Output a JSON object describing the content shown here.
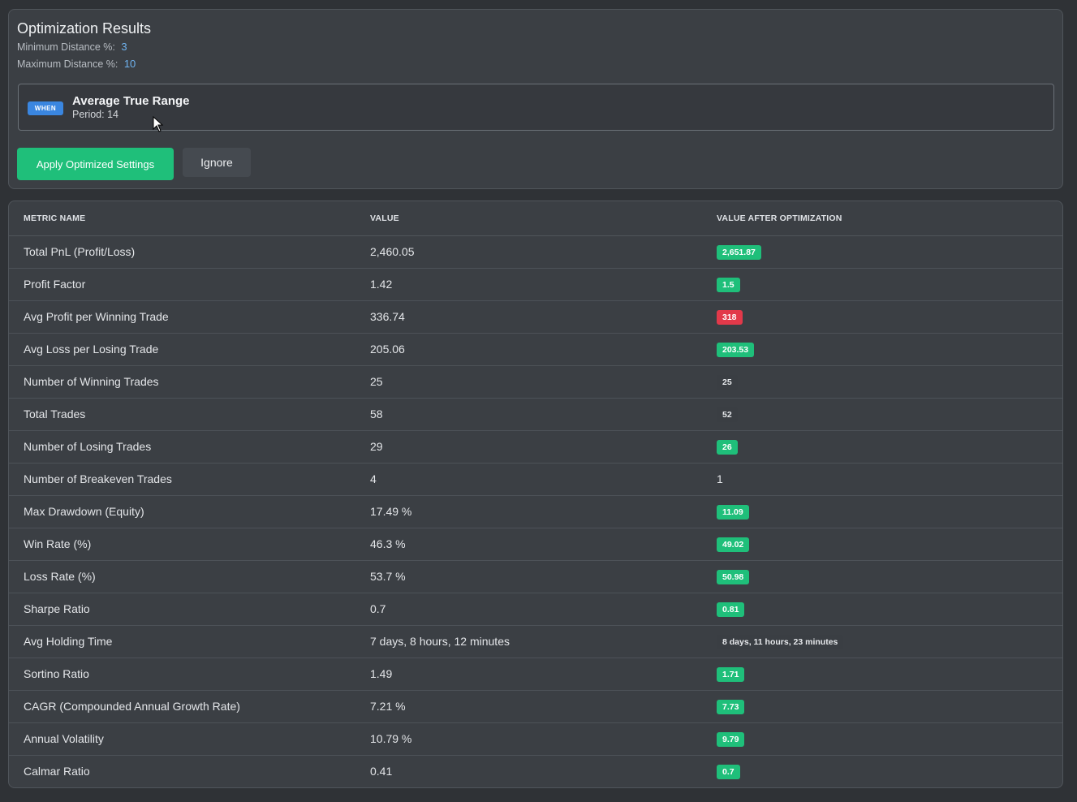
{
  "optimization": {
    "title": "Optimization Results",
    "min_label": "Minimum Distance %:",
    "min_value": "3",
    "max_label": "Maximum Distance %:",
    "max_value": "10",
    "condition": {
      "badge": "WHEN",
      "name": "Average True Range",
      "period": "Period: 14"
    },
    "apply_label": "Apply Optimized Settings",
    "ignore_label": "Ignore"
  },
  "table": {
    "headers": [
      "METRIC NAME",
      "VALUE",
      "VALUE AFTER OPTIMIZATION"
    ],
    "rows": [
      {
        "metric": "Total PnL (Profit/Loss)",
        "value": "2,460.05",
        "after": "2,651.87",
        "status": "up"
      },
      {
        "metric": "Profit Factor",
        "value": "1.42",
        "after": "1.5",
        "status": "up"
      },
      {
        "metric": "Avg Profit per Winning Trade",
        "value": "336.74",
        "after": "318",
        "status": "down"
      },
      {
        "metric": "Avg Loss per Losing Trade",
        "value": "205.06",
        "after": "203.53",
        "status": "up"
      },
      {
        "metric": "Number of Winning Trades",
        "value": "25",
        "after": "25",
        "status": "neutral"
      },
      {
        "metric": "Total Trades",
        "value": "58",
        "after": "52",
        "status": "neutral"
      },
      {
        "metric": "Number of Losing Trades",
        "value": "29",
        "after": "26",
        "status": "up"
      },
      {
        "metric": "Number of Breakeven Trades",
        "value": "4",
        "after": "1",
        "status": "plain"
      },
      {
        "metric": "Max Drawdown (Equity)",
        "value": "17.49 %",
        "after": "11.09",
        "status": "up"
      },
      {
        "metric": "Win Rate (%)",
        "value": "46.3 %",
        "after": "49.02",
        "status": "up"
      },
      {
        "metric": "Loss Rate (%)",
        "value": "53.7 %",
        "after": "50.98",
        "status": "up"
      },
      {
        "metric": "Sharpe Ratio",
        "value": "0.7",
        "after": "0.81",
        "status": "up"
      },
      {
        "metric": "Avg Holding Time",
        "value": "7 days, 8 hours, 12 minutes",
        "after": "8 days, 11 hours, 23 minutes",
        "status": "neutral"
      },
      {
        "metric": "Sortino Ratio",
        "value": "1.49",
        "after": "1.71",
        "status": "up"
      },
      {
        "metric": "CAGR (Compounded Annual Growth Rate)",
        "value": "7.21 %",
        "after": "7.73",
        "status": "up"
      },
      {
        "metric": "Annual Volatility",
        "value": "10.79 %",
        "after": "9.79",
        "status": "up"
      },
      {
        "metric": "Calmar Ratio",
        "value": "0.41",
        "after": "0.7",
        "status": "up"
      }
    ]
  },
  "colors": {
    "up": "#1fbf7a",
    "down": "#e2394a",
    "accent": "#3a86e0"
  }
}
